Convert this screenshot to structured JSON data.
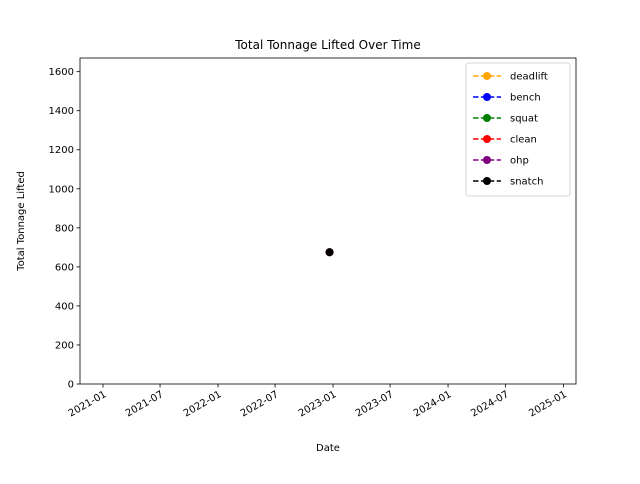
{
  "chart_data": {
    "type": "line",
    "title": "Total Tonnage Lifted Over Time",
    "xlabel": "Date",
    "ylabel": "Total Tonnage Lifted",
    "x_ticks": [
      "2021-01",
      "2021-07",
      "2022-01",
      "2022-07",
      "2023-01",
      "2023-07",
      "2024-01",
      "2024-07",
      "2025-01"
    ],
    "xlim": [
      "2020-10-20",
      "2025-02-10"
    ],
    "y_ticks": [
      0,
      200,
      400,
      600,
      800,
      1000,
      1200,
      1400,
      1600
    ],
    "ylim": [
      0,
      1670
    ],
    "grid": false,
    "legend_position": "top-right",
    "series": [
      {
        "name": "deadlift",
        "color": "#ffa500",
        "linestyle": "dashed",
        "marker": "circle",
        "points": [
          {
            "x": "2022-12-21",
            "y": 675
          }
        ]
      },
      {
        "name": "bench",
        "color": "#0000ff",
        "linestyle": "dashed",
        "marker": "circle",
        "points": [
          {
            "x": "2022-12-21",
            "y": 675
          }
        ]
      },
      {
        "name": "squat",
        "color": "#008000",
        "linestyle": "dashed",
        "marker": "circle",
        "points": [
          {
            "x": "2022-12-21",
            "y": 675
          }
        ]
      },
      {
        "name": "clean",
        "color": "#ff0000",
        "linestyle": "dashed",
        "marker": "circle",
        "points": [
          {
            "x": "2022-12-21",
            "y": 675
          }
        ]
      },
      {
        "name": "ohp",
        "color": "#800080",
        "linestyle": "dashed",
        "marker": "circle",
        "points": [
          {
            "x": "2022-12-21",
            "y": 675
          }
        ]
      },
      {
        "name": "snatch",
        "color": "#000000",
        "linestyle": "dashed",
        "marker": "circle",
        "points": [
          {
            "x": "2022-12-21",
            "y": 675
          }
        ]
      }
    ]
  }
}
